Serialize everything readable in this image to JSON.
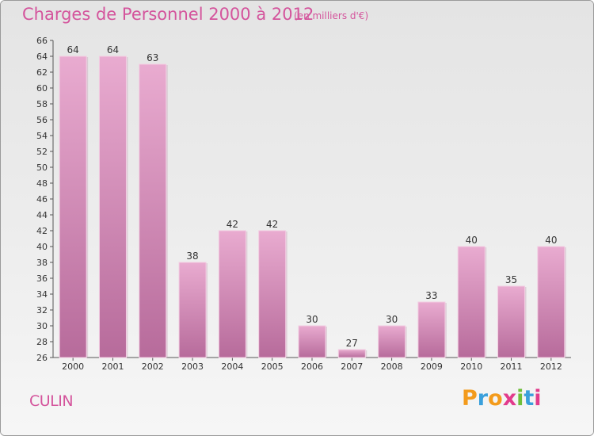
{
  "header": {
    "title": "Charges de Personnel 2000 à 2012",
    "subtitle": "(en milliers d'€)"
  },
  "footer": {
    "commune": "CULIN",
    "logo_text": "Proxiti"
  },
  "colors": {
    "accent": "#d4549c",
    "bar_top": "#e9abd0",
    "bar_bottom": "#b76b9b",
    "logo_letters": [
      "#f39b1c",
      "#3aa0dc",
      "#f39b1c",
      "#e23b8c",
      "#6fbf3a",
      "#3aa0dc",
      "#e23b8c"
    ]
  },
  "chart_data": {
    "type": "bar",
    "categories": [
      "2000",
      "2001",
      "2002",
      "2003",
      "2004",
      "2005",
      "2006",
      "2007",
      "2008",
      "2009",
      "2010",
      "2011",
      "2012"
    ],
    "values": [
      64,
      64,
      63,
      38,
      42,
      42,
      30,
      27,
      30,
      33,
      40,
      35,
      40
    ],
    "title": "Charges de Personnel 2000 à 2012",
    "subtitle": "(en milliers d'€)",
    "ylim": [
      26,
      66
    ],
    "ytick_step": 2,
    "grid": false,
    "data_labels": true
  }
}
